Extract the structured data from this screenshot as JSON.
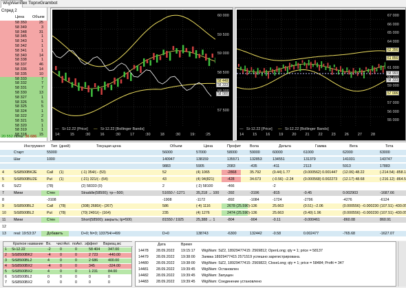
{
  "tabs": [
    "WigWam",
    "Тех Торги",
    "Grambot"
  ],
  "book": {
    "title": "Спред 2",
    "col_price": "Цена",
    "col_volume": "Объем",
    "asks": [
      {
        "price": "58 350",
        "vol": "25"
      },
      {
        "price": "58 349",
        "vol": "3"
      },
      {
        "price": "58 348",
        "vol": "31"
      },
      {
        "price": "58 345",
        "vol": "1"
      },
      {
        "price": "58 343",
        "vol": "1"
      },
      {
        "price": "58 342",
        "vol": "1"
      },
      {
        "price": "58 341",
        "vol": "1"
      },
      {
        "price": "58 340",
        "vol": "14"
      },
      {
        "price": "58 338",
        "vol": "1"
      },
      {
        "price": "58 337",
        "vol": "46"
      },
      {
        "price": "58 336",
        "vol": "14"
      },
      {
        "price": "58 335",
        "vol": "10"
      }
    ],
    "bids": [
      {
        "price": "58 333",
        "vol": "7"
      },
      {
        "price": "58 332",
        "vol": "7"
      },
      {
        "price": "58 331",
        "vol": "7"
      },
      {
        "price": "58 330",
        "vol": "13"
      },
      {
        "price": "58 327",
        "vol": "1"
      },
      {
        "price": "58 326",
        "vol": "5"
      },
      {
        "price": "58 325",
        "vol": "5"
      },
      {
        "price": "58 324",
        "vol": "1"
      },
      {
        "price": "58 322",
        "vol": "2"
      },
      {
        "price": "58 321",
        "vol": "5"
      },
      {
        "price": "58 320",
        "vol": "1"
      },
      {
        "price": "58 319",
        "vol": "1"
      },
      {
        "price": "58 318",
        "vol": "15"
      }
    ],
    "foot_green": "20 552",
    "foot_label": "Лоты:",
    "foot_red": "36 686"
  },
  "chart_left": {
    "y_ticks": [
      "60 000",
      "59 500",
      "59 000",
      "58 500",
      "58 000",
      "57 500"
    ],
    "price_tags": [
      "58 448",
      "58 333",
      "58 000"
    ],
    "x_ticks": [
      "14:",
      "15",
      ":30",
      "16",
      ":30",
      "17",
      ":30",
      "18",
      ":30",
      "19:",
      ":25"
    ],
    "legend_price": "Si-12.22 [Price]",
    "legend_bb": "Si-12.22 [Bollinger Bands]"
  },
  "chart_right": {
    "y_ticks": [
      "67 000",
      "66 000",
      "65 000",
      "64 000",
      "63 000",
      "62 000",
      "61 000",
      "60 000",
      "59 000",
      "58 000",
      "57 000",
      "56 000",
      "55 000"
    ],
    "price_tags": [
      "62 356",
      "61 856",
      "58 993",
      "58 333",
      "57 006"
    ],
    "x_ticks": [
      "14",
      "15",
      "16",
      "19",
      "20",
      "21",
      "22",
      "23",
      "26",
      "27",
      "28"
    ],
    "legend_price": "Si-12.22 [Price]",
    "legend_bb": "Si-12.22 [Bollinger Bands]"
  },
  "table": {
    "headers": [
      "Инструмент",
      "Тип",
      "(дней)",
      "Текущая цена",
      "Объем",
      "Цена",
      "Профит",
      "Вола",
      "Дельта",
      "Гамма",
      "Вега",
      "Тета"
    ],
    "rows": [
      {
        "n": "",
        "inst": "Старт",
        "type": "55000",
        "cur": "",
        "vol": "56000",
        "price": "57000",
        "profit": "58000",
        "vola": "59000",
        "delta": "60000",
        "gamma": "61000",
        "vega": "62000",
        "theta": "63000"
      },
      {
        "n": "",
        "inst": "Шаг",
        "type": "1000",
        "cur": "",
        "vol": "140947",
        "price": "138159",
        "profit": "135571",
        "vola": "132853",
        "delta": "134551",
        "gamma": "131379",
        "vega": "141031",
        "theta": "143747"
      },
      {
        "n": "",
        "inst": "",
        "type": "",
        "cur": "",
        "vol": "9883",
        "price": "5905",
        "profit": "2083",
        "vola": "-435",
        "delta": "-411",
        "gamma": "2113",
        "vega": "5913",
        "theta": "17883"
      },
      {
        "n": "4",
        "inst": "SiS8500BK2E",
        "type": "Call",
        "days": "(1)",
        "cur": "(-1) 354/(− (53)",
        "vol": "52",
        "price": "(4) 1065",
        "profit": "-2868",
        "vola": "35.792",
        "delta": "(0.44) 1.77",
        "gamma": "(0.000562) 0.001447",
        "vega": "(12.06) 48.22",
        "theta": "(-214.54) -858.15"
      },
      {
        "n": "5",
        "inst": "SiS8500BU2E",
        "type": "Put",
        "days": "(1)",
        "cur": "(-21) 321/(− (64)",
        "vol": "43",
        "price": "(4) 94(821)",
        "profit": "-428",
        "vola": "34.673",
        "delta": "(-0.56) −2.24",
        "gamma": "(0.000568) 0.002273",
        "vega": "(12.17) 48.68",
        "theta": "(-216.12) -864.50"
      },
      {
        "n": "6",
        "inst": "SiZ2",
        "type": "(78)",
        "days": "",
        "cur": "(2) 58333 (0)",
        "vol": "2",
        "price": "(-2) 58100",
        "profit": "-466",
        "vola": "",
        "delta": "-2",
        "gamma": "",
        "vega": "",
        "theta": ""
      },
      {
        "n": "7",
        "inst": "Мини",
        "type": "Стен",
        "days": "",
        "cur": "Straddle(58500); тр—500;",
        "vol": "51650 / -1271",
        "price": "35,218 → 100",
        "profit": "-392",
        "vola": "-3196",
        "delta": "-815",
        "gamma": "-0.45",
        "vega": "0.002903",
        "theta": "-1687.66"
      },
      {
        "n": "8",
        "inst": "",
        "type": "-3108",
        "days": "",
        "cur": "",
        "vol": "-1908",
        "price": "-1172",
        "profit": "-892",
        "vola": "-1084",
        "delta": "-1724",
        "gamma": "-2796",
        "vega": "-4276",
        "theta": "-6124"
      },
      {
        "n": "9",
        "inst": "SiS8500BL2",
        "type": "Call",
        "days": "(78)",
        "cur": "(308) 2680/(− (267)",
        "vol": "586",
        "price": "(-4) 1116",
        "profit": "2678 (25.590)",
        "vola": "-136",
        "delta": "25.663",
        "gamma": "(0.51) −2.06",
        "vega": "(0.000556) −0.000230",
        "theta": "(107.51) -430.05"
      },
      {
        "n": "10",
        "inst": "SiS8500BL2",
        "type": "Put",
        "days": "(78)",
        "cur": "(70) 2491/(− (164)",
        "vol": "235",
        "price": "(4) 1276",
        "profit": "2474 (25.590)",
        "vola": "-136",
        "delta": "25.663",
        "gamma": "(0.49) 1.96",
        "vega": "(0.000556) −0.000230",
        "theta": "(107.51) -430.05"
      },
      {
        "n": "11",
        "inst": "Мини",
        "type": "Стен",
        "days": "",
        "cur": "Short(58500); закрыть; tp=500;",
        "vol": "81550 / 1925",
        "price": "25,388 → 1",
        "profit": "-804",
        "vola": "-904",
        "delta": "-0.11",
        "gamma": "-0.000461",
        "vega": "-860.08",
        "theta": "860.91"
      },
      {
        "n": "12",
        "inst": "",
        "type": "",
        "days": "",
        "cur": "",
        "vol": "",
        "price": "",
        "profit": "",
        "vola": "",
        "delta": "",
        "gamma": "",
        "vega": "",
        "theta": ""
      },
      {
        "n": "13",
        "inst": "real: 19:53:37",
        "type": "Добавить",
        "days": "",
        "cur": "D+0; N=3; 133754/+499",
        "vol": "D+0",
        "price": "138743",
        "profit": "-6300",
        "vola": "132442",
        "delta": "-0.58",
        "gamma": "0.002477",
        "vega": "-765.68",
        "theta": "-1627.07"
      }
    ]
  },
  "bottom_list": {
    "headers": [
      "Краткое название",
      "Вх.",
      "чистАкт.",
      "поАкт.",
      "эффект",
      "Вариац.мс"
    ],
    "rows": [
      {
        "n": "1",
        "name": "Si-12.22",
        "a": "-2",
        "b": "0",
        "c": "0",
        "d": "58 404",
        "e": "347.00",
        "bg": "green"
      },
      {
        "n": "2",
        "name": "SiS8500BK2",
        "a": "-4",
        "b": "0",
        "c": "0",
        "d": "2 723",
        "e": "-440.00",
        "bg": "red"
      },
      {
        "n": "3",
        "name": "SiS8500BL2",
        "a": "4",
        "b": "0",
        "c": "0",
        "d": "2 686",
        "e": "400.00",
        "bg": "green"
      },
      {
        "n": "4",
        "name": "SiS8500BX2",
        "a": "-4",
        "b": "0",
        "c": "0",
        "d": "345",
        "e": "-324.00",
        "bg": "red"
      },
      {
        "n": "5",
        "name": "SiS8500BX2",
        "a": "4",
        "b": "0",
        "c": "0",
        "d": "1 231",
        "e": "84.00",
        "bg": "green"
      },
      {
        "n": "6",
        "name": "SiS8500BL2",
        "a": "0",
        "b": "0",
        "c": "0",
        "d": "0",
        "e": "0",
        "bg": "white"
      },
      {
        "n": "7",
        "name": "SiS8500BX2",
        "a": "0",
        "b": "0",
        "c": "0",
        "d": "0",
        "e": "0",
        "bg": "white"
      }
    ]
  },
  "log": {
    "headers": [
      "",
      "Дата",
      "Время",
      ""
    ],
    "rows": [
      {
        "id": "14478",
        "date": "28.09.2022",
        "time": "19:15:17",
        "msg": "WigWam: SiZ2, 18929477415: 2569812; OpenLong; qty = 1; price = 58137"
      },
      {
        "id": "14479",
        "date": "28.09.2022",
        "time": "19:38:00",
        "msg": "Заявка 18929477415 2571519 успешно зарегистрирована."
      },
      {
        "id": "14480",
        "date": "28.09.2022",
        "time": "19:38:00",
        "msg": "WigWam: SiZ2, 18929477415: 2569822; CloseLong; qty = 1; price = 58484; Profit = 347"
      },
      {
        "id": "14481",
        "date": "28.09.2022",
        "time": "19:39:45",
        "msg": "WigWam: Остановлен"
      },
      {
        "id": "14482",
        "date": "28.09.2022",
        "time": "19:39:45",
        "msg": "WigWam: Запущен"
      },
      {
        "id": "14483",
        "date": "28.09.2022",
        "time": "19:39:45",
        "msg": "WigWam: Соединение установлено"
      }
    ]
  }
}
